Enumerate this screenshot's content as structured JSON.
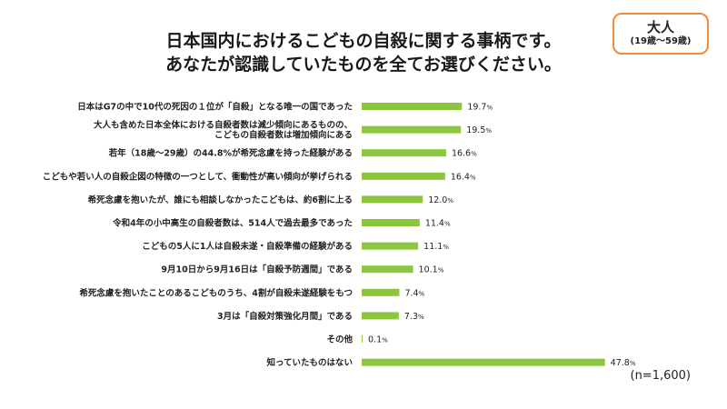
{
  "title": {
    "line1": "日本国内におけるこどもの自殺に関する事柄です。",
    "line2": "あなたが認識していたものを全てお選びください。"
  },
  "badge": {
    "main": "大人",
    "sub": "(19歳～59歳)"
  },
  "sample_note": "(n=1,600)",
  "colors": {
    "bar": "#8cc63f",
    "badge_border": "#f08a3c",
    "text": "#222222"
  },
  "chart_data": {
    "type": "bar",
    "orientation": "horizontal",
    "unit": "%",
    "xlim": [
      0,
      50
    ],
    "grid": false,
    "categories": [
      [
        "日本はG7の中で10代の死因の１位が「自殺」となる唯一の国であった"
      ],
      [
        "大人も含めた日本全体における自殺者数は減少傾向にあるものの、",
        "こどもの自殺者数は増加傾向にある"
      ],
      [
        "若年（18歳～29歳）の44.8%が希死念慮を持った経験がある"
      ],
      [
        "こどもや若い人の自殺企図の特徴の一つとして、衝動性が高い傾向が挙げられる"
      ],
      [
        "希死念慮を抱いたが、誰にも相談しなかったこどもは、約6割に上る"
      ],
      [
        "令和4年の小中高生の自殺者数は、514人で過去最多であった"
      ],
      [
        "こどもの5人に1人は自殺未遂・自殺準備の経験がある"
      ],
      [
        "9月10日から9月16日は「自殺予防週間」である"
      ],
      [
        "希死念慮を抱いたことのあるこどものうち、4割が自殺未遂経験をもつ"
      ],
      [
        "3月は「自殺対策強化月間」である"
      ],
      [
        "その他"
      ],
      [
        "知っていたものはない"
      ]
    ],
    "values": [
      19.7,
      19.5,
      16.6,
      16.4,
      12.0,
      11.4,
      11.1,
      10.1,
      7.4,
      7.3,
      0.1,
      47.8
    ],
    "value_labels": [
      "19.7",
      "19.5",
      "16.6",
      "16.4",
      "12.0",
      "11.4",
      "11.1",
      "10.1",
      "7.4",
      "7.3",
      "0.1",
      "47.8"
    ]
  }
}
